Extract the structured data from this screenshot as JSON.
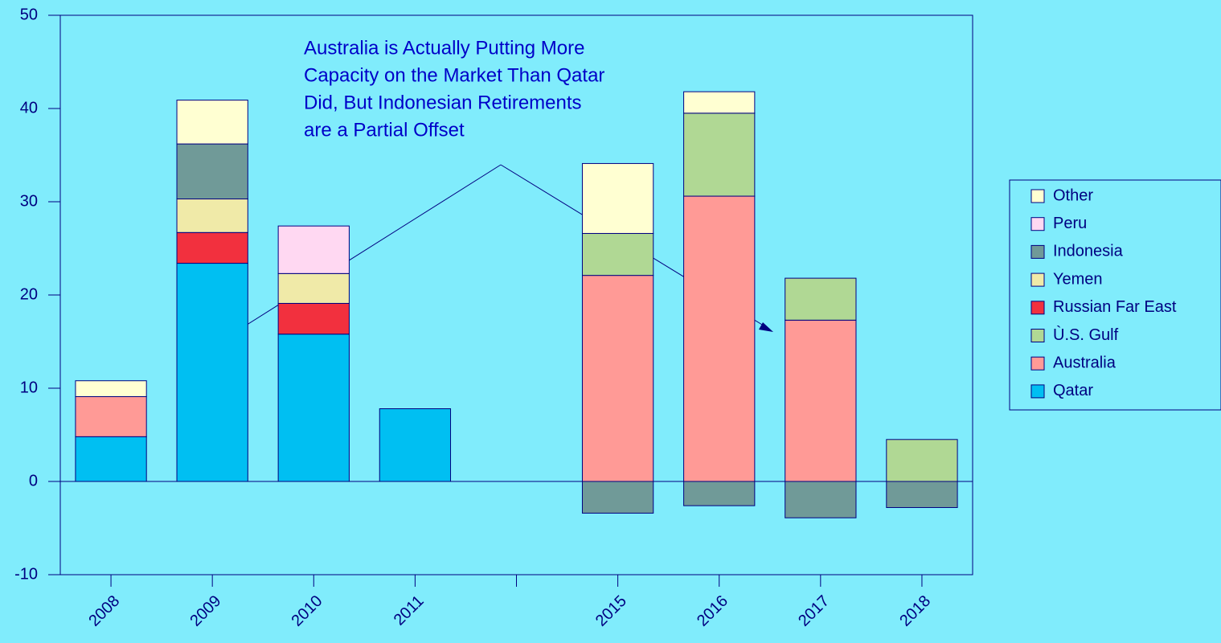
{
  "chart_data": {
    "type": "stacked-bar",
    "annotation": [
      "Australia is Actually Putting More",
      "Capacity on the Market Than Qatar",
      "Did, But Indonesian Retirements",
      "are a Partial Offset"
    ],
    "categories": [
      "2008",
      "2009",
      "2010",
      "2011",
      null,
      "2015",
      "2016",
      "2017",
      "2018"
    ],
    "series": [
      {
        "name": "Qatar",
        "color": "#00bff2",
        "values": [
          4.8,
          23.4,
          15.8,
          7.8,
          null,
          null,
          null,
          null,
          null
        ]
      },
      {
        "name": "Australia",
        "color": "#ff9a96",
        "values": [
          4.3,
          null,
          null,
          null,
          null,
          22.1,
          30.6,
          17.3,
          null
        ]
      },
      {
        "name": "Ù.S. Gulf",
        "color": "#b0d894",
        "values": [
          null,
          null,
          null,
          null,
          null,
          4.5,
          8.9,
          4.5,
          4.5
        ]
      },
      {
        "name": "Russian Far East",
        "color": "#f2303e",
        "values": [
          null,
          3.3,
          3.3,
          null,
          null,
          null,
          null,
          null,
          null
        ]
      },
      {
        "name": "Yemen",
        "color": "#f0eaa8",
        "values": [
          null,
          3.6,
          3.2,
          null,
          null,
          null,
          null,
          null,
          null
        ]
      },
      {
        "name": "Indonesia",
        "color": "#709a98",
        "values": [
          null,
          5.9,
          null,
          null,
          null,
          -3.4,
          -2.6,
          -3.9,
          -2.8
        ]
      },
      {
        "name": "Peru",
        "color": "#ffd8f2",
        "values": [
          null,
          null,
          5.1,
          null,
          null,
          null,
          null,
          null,
          null
        ]
      },
      {
        "name": "Other",
        "color": "#ffffd2",
        "values": [
          1.7,
          4.7,
          null,
          null,
          null,
          7.5,
          2.3,
          null,
          null
        ]
      }
    ],
    "ylim": [
      -10,
      50
    ],
    "yticks": [
      -10,
      0,
      10,
      20,
      30,
      40,
      50
    ],
    "legend": "right"
  }
}
